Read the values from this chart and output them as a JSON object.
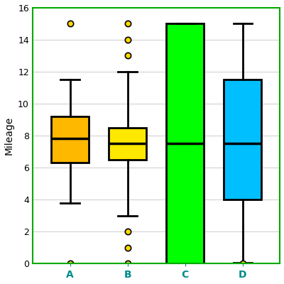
{
  "title": "",
  "ylabel": "Mileage",
  "xlabel": "",
  "categories": [
    "A",
    "B",
    "C",
    "D"
  ],
  "box_data": {
    "A": {
      "whislo": 3.8,
      "q1": 6.3,
      "med": 7.8,
      "q3": 9.2,
      "whishi": 11.5,
      "fliers": [
        15.0,
        0.0
      ]
    },
    "B": {
      "whislo": 3.0,
      "q1": 6.5,
      "med": 7.5,
      "q3": 8.5,
      "whishi": 12.0,
      "fliers": [
        0.0,
        1.0,
        2.0,
        13.0,
        14.0,
        15.0
      ]
    },
    "C": {
      "whislo": 0.0,
      "q1": 0.0,
      "med": 7.5,
      "q3": 15.0,
      "whishi": 15.0,
      "fliers": []
    },
    "D": {
      "whislo": 0.05,
      "q1": 4.0,
      "med": 7.5,
      "q3": 11.5,
      "whishi": 15.0,
      "fliers": [
        0.0
      ]
    }
  },
  "box_colors": [
    "#FFB800",
    "#FFE800",
    "#00FF00",
    "#00BFFF"
  ],
  "flier_facecolor": "#FFD700",
  "flier_edgecolor": "#000000",
  "median_color": "#000000",
  "whisker_color": "#000000",
  "cap_color": "#000000",
  "box_edge_color": "#000000",
  "ylim": [
    0,
    16
  ],
  "yticks": [
    0,
    2,
    4,
    6,
    8,
    10,
    12,
    14,
    16
  ],
  "bg_color": "#FFFFFF",
  "plot_bg_color": "#FFFFFF",
  "grid_color": "#CCCCCC",
  "axis_line_color": "#00AA00",
  "xtick_label_color": "#008B8B",
  "border_color": "#000000",
  "box_width": 0.65,
  "figsize": [
    4.0,
    4.0
  ],
  "dpi": 100
}
